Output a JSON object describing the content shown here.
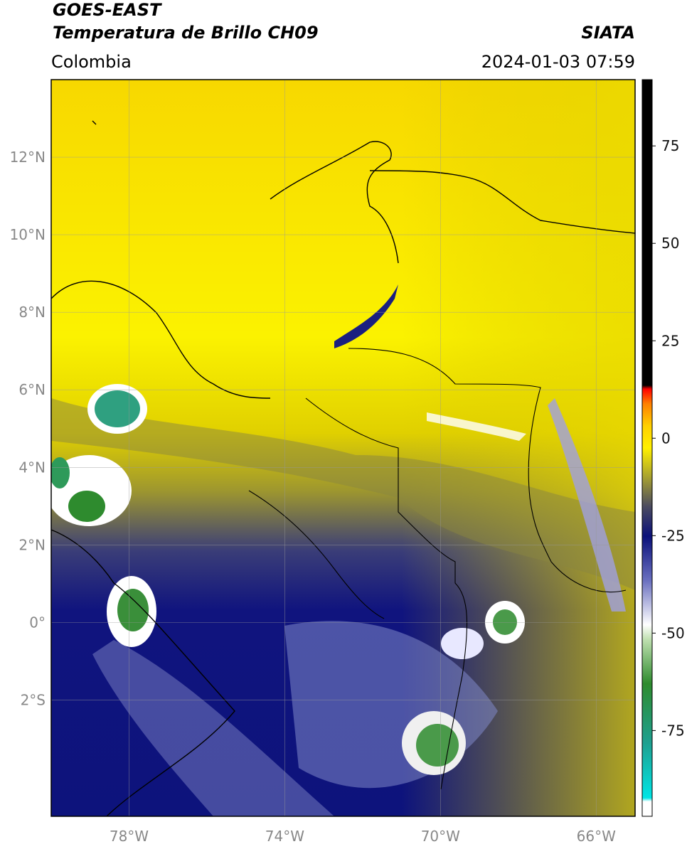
{
  "header": {
    "title": "GOES-EAST",
    "subtitle": "Temperatura de Brillo CH09",
    "source": "SIATA",
    "region": "Colombia",
    "timestamp": "2024-01-03 07:59"
  },
  "map": {
    "xlim": [
      -80,
      -65
    ],
    "ylim": [
      -5,
      14
    ],
    "xticks": [
      {
        "value": -78,
        "label": "78°W"
      },
      {
        "value": -74,
        "label": "74°W"
      },
      {
        "value": -70,
        "label": "70°W"
      },
      {
        "value": -66,
        "label": "66°W"
      }
    ],
    "yticks": [
      {
        "value": 12,
        "label": "12°N"
      },
      {
        "value": 10,
        "label": "10°N"
      },
      {
        "value": 8,
        "label": "8°N"
      },
      {
        "value": 6,
        "label": "6°N"
      },
      {
        "value": 4,
        "label": "4°N"
      },
      {
        "value": 2,
        "label": "2°N"
      },
      {
        "value": 0,
        "label": "0°"
      },
      {
        "value": -2,
        "label": "2°S"
      }
    ],
    "grid": true
  },
  "colorbar": {
    "lim": [
      -97,
      92
    ],
    "ticks": [
      75,
      50,
      25,
      0,
      -25,
      -50,
      -75
    ]
  }
}
